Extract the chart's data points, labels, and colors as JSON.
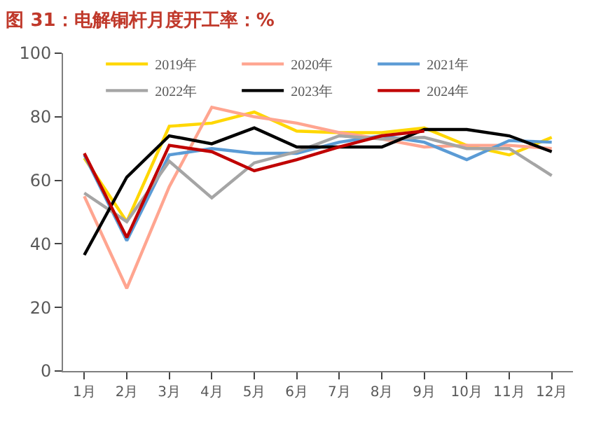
{
  "chart_data": {
    "type": "line",
    "title": "图 31：电解铜杆月度开工率：%",
    "categories": [
      "1月",
      "2月",
      "3月",
      "4月",
      "5月",
      "6月",
      "7月",
      "8月",
      "9月",
      "10月",
      "11月",
      "12月"
    ],
    "series": [
      {
        "name": "2019年",
        "color": "#ffd700",
        "values": [
          67,
          47,
          77,
          78,
          81.5,
          75.5,
          75,
          75,
          76.5,
          71,
          68,
          73.5
        ]
      },
      {
        "name": "2020年",
        "color": "#ffa590",
        "values": [
          55,
          26,
          58,
          83,
          80,
          78,
          75,
          73,
          70.5,
          71,
          71,
          70
        ]
      },
      {
        "name": "2021年",
        "color": "#5b9bd5",
        "values": [
          68,
          41,
          68,
          70,
          68.5,
          68.5,
          72,
          74,
          72,
          66.5,
          72.5,
          72
        ]
      },
      {
        "name": "2022年",
        "color": "#a5a5a5",
        "values": [
          56,
          47,
          66,
          54.5,
          65.5,
          69,
          74,
          73,
          73.5,
          70,
          70,
          61.5
        ]
      },
      {
        "name": "2023年",
        "color": "#000000",
        "values": [
          36.5,
          61,
          74,
          71.5,
          76.5,
          70.5,
          70.5,
          70.5,
          76,
          76,
          74,
          69
        ]
      },
      {
        "name": "2024年",
        "color": "#c00000",
        "values": [
          68.5,
          42,
          71,
          69,
          63,
          66.5,
          70.5,
          74,
          75.5,
          null,
          null,
          null
        ]
      }
    ],
    "ylim": [
      0,
      100
    ],
    "yticks": [
      0,
      20,
      40,
      60,
      80,
      100
    ],
    "legend": "top",
    "marker": "none",
    "line_style": "solid"
  }
}
